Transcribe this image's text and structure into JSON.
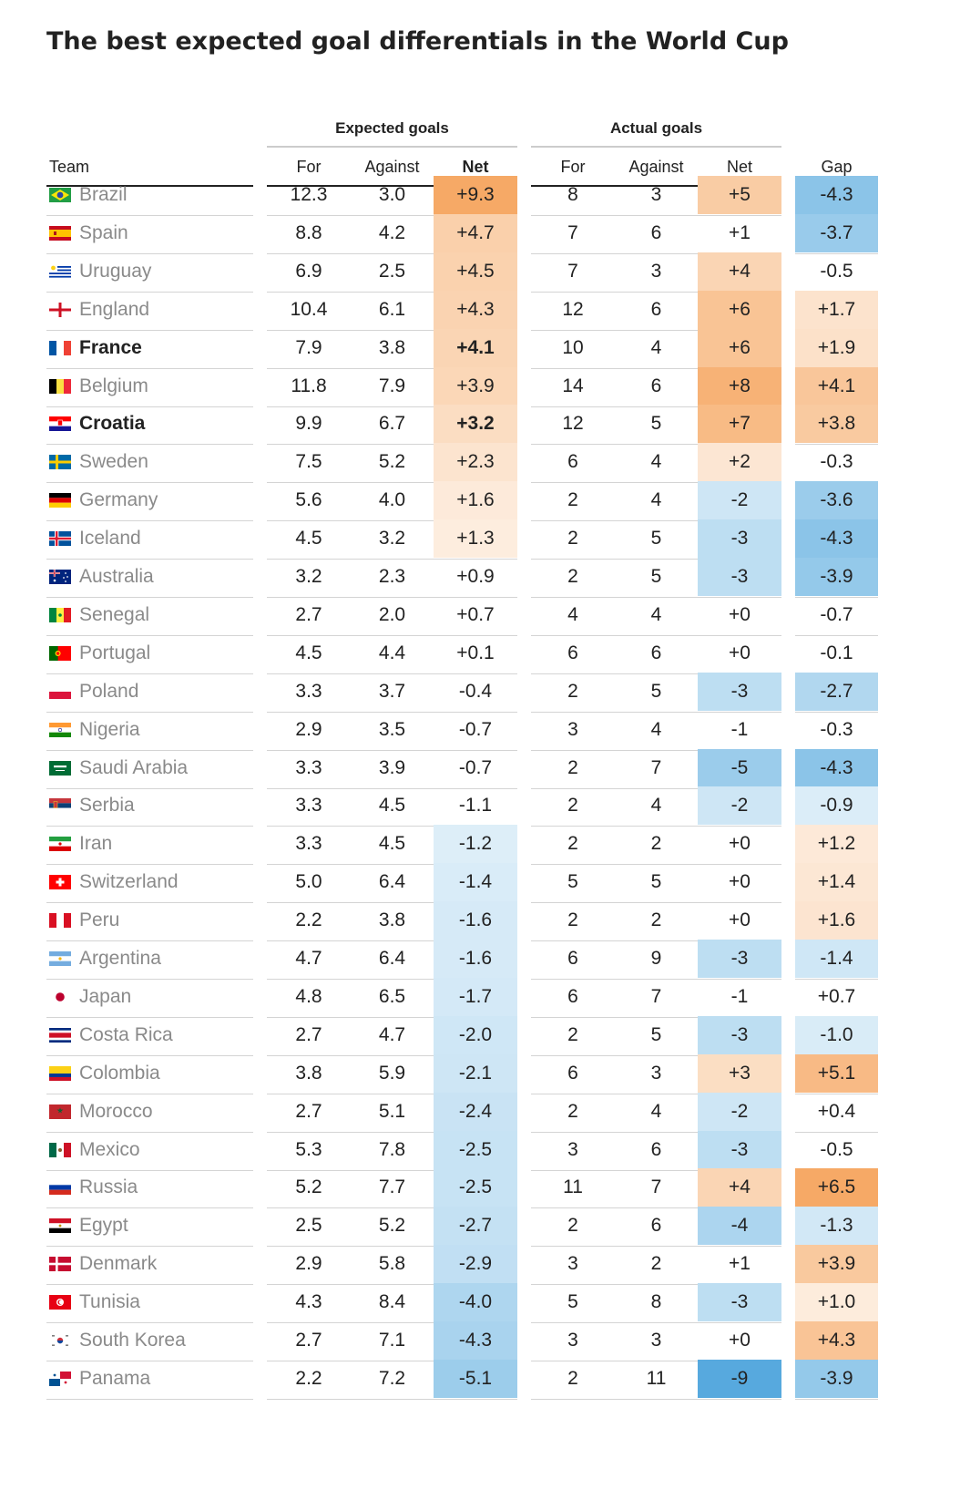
{
  "title": "The best expected goal differentials in the World Cup",
  "chart_data": {
    "type": "table",
    "title": "The best expected goal differentials in the World Cup",
    "column_groups": [
      {
        "label": "Expected goals",
        "columns": [
          "For",
          "Against",
          "Net"
        ]
      },
      {
        "label": "Actual goals",
        "columns": [
          "For",
          "Against",
          "Net"
        ]
      },
      {
        "label": "",
        "columns": [
          "Gap"
        ]
      }
    ],
    "headers": {
      "team": "Team",
      "xg_for": "For",
      "xg_against": "Against",
      "xg_net": "Net",
      "ag_for": "For",
      "ag_against": "Against",
      "ag_net": "Net",
      "gap": "Gap"
    },
    "colors": {
      "positive": "#f5a35b",
      "negative": "#4aa3db",
      "rule_dark": "#222222",
      "rule_light": "#cccccc",
      "team_text": "#8a8a8a"
    },
    "rows": [
      {
        "team": "Brazil",
        "flag": "brazil-flag-icon",
        "xg_for": "12.3",
        "xg_against": "3.0",
        "xg_net": "+9.3",
        "ag_for": "8",
        "ag_against": "3",
        "ag_net": "+5",
        "gap": "-4.3",
        "bold": false
      },
      {
        "team": "Spain",
        "flag": "spain-flag-icon",
        "xg_for": "8.8",
        "xg_against": "4.2",
        "xg_net": "+4.7",
        "ag_for": "7",
        "ag_against": "6",
        "ag_net": "+1",
        "gap": "-3.7",
        "bold": false
      },
      {
        "team": "Uruguay",
        "flag": "uruguay-flag-icon",
        "xg_for": "6.9",
        "xg_against": "2.5",
        "xg_net": "+4.5",
        "ag_for": "7",
        "ag_against": "3",
        "ag_net": "+4",
        "gap": "-0.5",
        "bold": false
      },
      {
        "team": "England",
        "flag": "england-flag-icon",
        "xg_for": "10.4",
        "xg_against": "6.1",
        "xg_net": "+4.3",
        "ag_for": "12",
        "ag_against": "6",
        "ag_net": "+6",
        "gap": "+1.7",
        "bold": false
      },
      {
        "team": "France",
        "flag": "france-flag-icon",
        "xg_for": "7.9",
        "xg_against": "3.8",
        "xg_net": "+4.1",
        "ag_for": "10",
        "ag_against": "4",
        "ag_net": "+6",
        "gap": "+1.9",
        "bold": true
      },
      {
        "team": "Belgium",
        "flag": "belgium-flag-icon",
        "xg_for": "11.8",
        "xg_against": "7.9",
        "xg_net": "+3.9",
        "ag_for": "14",
        "ag_against": "6",
        "ag_net": "+8",
        "gap": "+4.1",
        "bold": false
      },
      {
        "team": "Croatia",
        "flag": "croatia-flag-icon",
        "xg_for": "9.9",
        "xg_against": "6.7",
        "xg_net": "+3.2",
        "ag_for": "12",
        "ag_against": "5",
        "ag_net": "+7",
        "gap": "+3.8",
        "bold": true
      },
      {
        "team": "Sweden",
        "flag": "sweden-flag-icon",
        "xg_for": "7.5",
        "xg_against": "5.2",
        "xg_net": "+2.3",
        "ag_for": "6",
        "ag_against": "4",
        "ag_net": "+2",
        "gap": "-0.3",
        "bold": false
      },
      {
        "team": "Germany",
        "flag": "germany-flag-icon",
        "xg_for": "5.6",
        "xg_against": "4.0",
        "xg_net": "+1.6",
        "ag_for": "2",
        "ag_against": "4",
        "ag_net": "-2",
        "gap": "-3.6",
        "bold": false
      },
      {
        "team": "Iceland",
        "flag": "iceland-flag-icon",
        "xg_for": "4.5",
        "xg_against": "3.2",
        "xg_net": "+1.3",
        "ag_for": "2",
        "ag_against": "5",
        "ag_net": "-3",
        "gap": "-4.3",
        "bold": false
      },
      {
        "team": "Australia",
        "flag": "australia-flag-icon",
        "xg_for": "3.2",
        "xg_against": "2.3",
        "xg_net": "+0.9",
        "ag_for": "2",
        "ag_against": "5",
        "ag_net": "-3",
        "gap": "-3.9",
        "bold": false
      },
      {
        "team": "Senegal",
        "flag": "senegal-flag-icon",
        "xg_for": "2.7",
        "xg_against": "2.0",
        "xg_net": "+0.7",
        "ag_for": "4",
        "ag_against": "4",
        "ag_net": "+0",
        "gap": "-0.7",
        "bold": false
      },
      {
        "team": "Portugal",
        "flag": "portugal-flag-icon",
        "xg_for": "4.5",
        "xg_against": "4.4",
        "xg_net": "+0.1",
        "ag_for": "6",
        "ag_against": "6",
        "ag_net": "+0",
        "gap": "-0.1",
        "bold": false
      },
      {
        "team": "Poland",
        "flag": "poland-flag-icon",
        "xg_for": "3.3",
        "xg_against": "3.7",
        "xg_net": "-0.4",
        "ag_for": "2",
        "ag_against": "5",
        "ag_net": "-3",
        "gap": "-2.7",
        "bold": false
      },
      {
        "team": "Nigeria",
        "flag": "nigeria-flag-icon",
        "xg_for": "2.9",
        "xg_against": "3.5",
        "xg_net": "-0.7",
        "ag_for": "3",
        "ag_against": "4",
        "ag_net": "-1",
        "gap": "-0.3",
        "bold": false
      },
      {
        "team": "Saudi Arabia",
        "flag": "saudi-arabia-flag-icon",
        "xg_for": "3.3",
        "xg_against": "3.9",
        "xg_net": "-0.7",
        "ag_for": "2",
        "ag_against": "7",
        "ag_net": "-5",
        "gap": "-4.3",
        "bold": false
      },
      {
        "team": "Serbia",
        "flag": "serbia-flag-icon",
        "xg_for": "3.3",
        "xg_against": "4.5",
        "xg_net": "-1.1",
        "ag_for": "2",
        "ag_against": "4",
        "ag_net": "-2",
        "gap": "-0.9",
        "bold": false
      },
      {
        "team": "Iran",
        "flag": "iran-flag-icon",
        "xg_for": "3.3",
        "xg_against": "4.5",
        "xg_net": "-1.2",
        "ag_for": "2",
        "ag_against": "2",
        "ag_net": "+0",
        "gap": "+1.2",
        "bold": false
      },
      {
        "team": "Switzerland",
        "flag": "switzerland-flag-icon",
        "xg_for": "5.0",
        "xg_against": "6.4",
        "xg_net": "-1.4",
        "ag_for": "5",
        "ag_against": "5",
        "ag_net": "+0",
        "gap": "+1.4",
        "bold": false
      },
      {
        "team": "Peru",
        "flag": "peru-flag-icon",
        "xg_for": "2.2",
        "xg_against": "3.8",
        "xg_net": "-1.6",
        "ag_for": "2",
        "ag_against": "2",
        "ag_net": "+0",
        "gap": "+1.6",
        "bold": false
      },
      {
        "team": "Argentina",
        "flag": "argentina-flag-icon",
        "xg_for": "4.7",
        "xg_against": "6.4",
        "xg_net": "-1.6",
        "ag_for": "6",
        "ag_against": "9",
        "ag_net": "-3",
        "gap": "-1.4",
        "bold": false
      },
      {
        "team": "Japan",
        "flag": "japan-flag-icon",
        "xg_for": "4.8",
        "xg_against": "6.5",
        "xg_net": "-1.7",
        "ag_for": "6",
        "ag_against": "7",
        "ag_net": "-1",
        "gap": "+0.7",
        "bold": false
      },
      {
        "team": "Costa Rica",
        "flag": "costa-rica-flag-icon",
        "xg_for": "2.7",
        "xg_against": "4.7",
        "xg_net": "-2.0",
        "ag_for": "2",
        "ag_against": "5",
        "ag_net": "-3",
        "gap": "-1.0",
        "bold": false
      },
      {
        "team": "Colombia",
        "flag": "colombia-flag-icon",
        "xg_for": "3.8",
        "xg_against": "5.9",
        "xg_net": "-2.1",
        "ag_for": "6",
        "ag_against": "3",
        "ag_net": "+3",
        "gap": "+5.1",
        "bold": false
      },
      {
        "team": "Morocco",
        "flag": "morocco-flag-icon",
        "xg_for": "2.7",
        "xg_against": "5.1",
        "xg_net": "-2.4",
        "ag_for": "2",
        "ag_against": "4",
        "ag_net": "-2",
        "gap": "+0.4",
        "bold": false
      },
      {
        "team": "Mexico",
        "flag": "mexico-flag-icon",
        "xg_for": "5.3",
        "xg_against": "7.8",
        "xg_net": "-2.5",
        "ag_for": "3",
        "ag_against": "6",
        "ag_net": "-3",
        "gap": "-0.5",
        "bold": false
      },
      {
        "team": "Russia",
        "flag": "russia-flag-icon",
        "xg_for": "5.2",
        "xg_against": "7.7",
        "xg_net": "-2.5",
        "ag_for": "11",
        "ag_against": "7",
        "ag_net": "+4",
        "gap": "+6.5",
        "bold": false
      },
      {
        "team": "Egypt",
        "flag": "egypt-flag-icon",
        "xg_for": "2.5",
        "xg_against": "5.2",
        "xg_net": "-2.7",
        "ag_for": "2",
        "ag_against": "6",
        "ag_net": "-4",
        "gap": "-1.3",
        "bold": false
      },
      {
        "team": "Denmark",
        "flag": "denmark-flag-icon",
        "xg_for": "2.9",
        "xg_against": "5.8",
        "xg_net": "-2.9",
        "ag_for": "3",
        "ag_against": "2",
        "ag_net": "+1",
        "gap": "+3.9",
        "bold": false
      },
      {
        "team": "Tunisia",
        "flag": "tunisia-flag-icon",
        "xg_for": "4.3",
        "xg_against": "8.4",
        "xg_net": "-4.0",
        "ag_for": "5",
        "ag_against": "8",
        "ag_net": "-3",
        "gap": "+1.0",
        "bold": false
      },
      {
        "team": "South Korea",
        "flag": "south-korea-flag-icon",
        "xg_for": "2.7",
        "xg_against": "7.1",
        "xg_net": "-4.3",
        "ag_for": "3",
        "ag_against": "3",
        "ag_net": "+0",
        "gap": "+4.3",
        "bold": false
      },
      {
        "team": "Panama",
        "flag": "panama-flag-icon",
        "xg_for": "2.2",
        "xg_against": "7.2",
        "xg_net": "-5.1",
        "ag_for": "2",
        "ag_against": "11",
        "ag_net": "-9",
        "gap": "-3.9",
        "bold": false
      }
    ]
  }
}
